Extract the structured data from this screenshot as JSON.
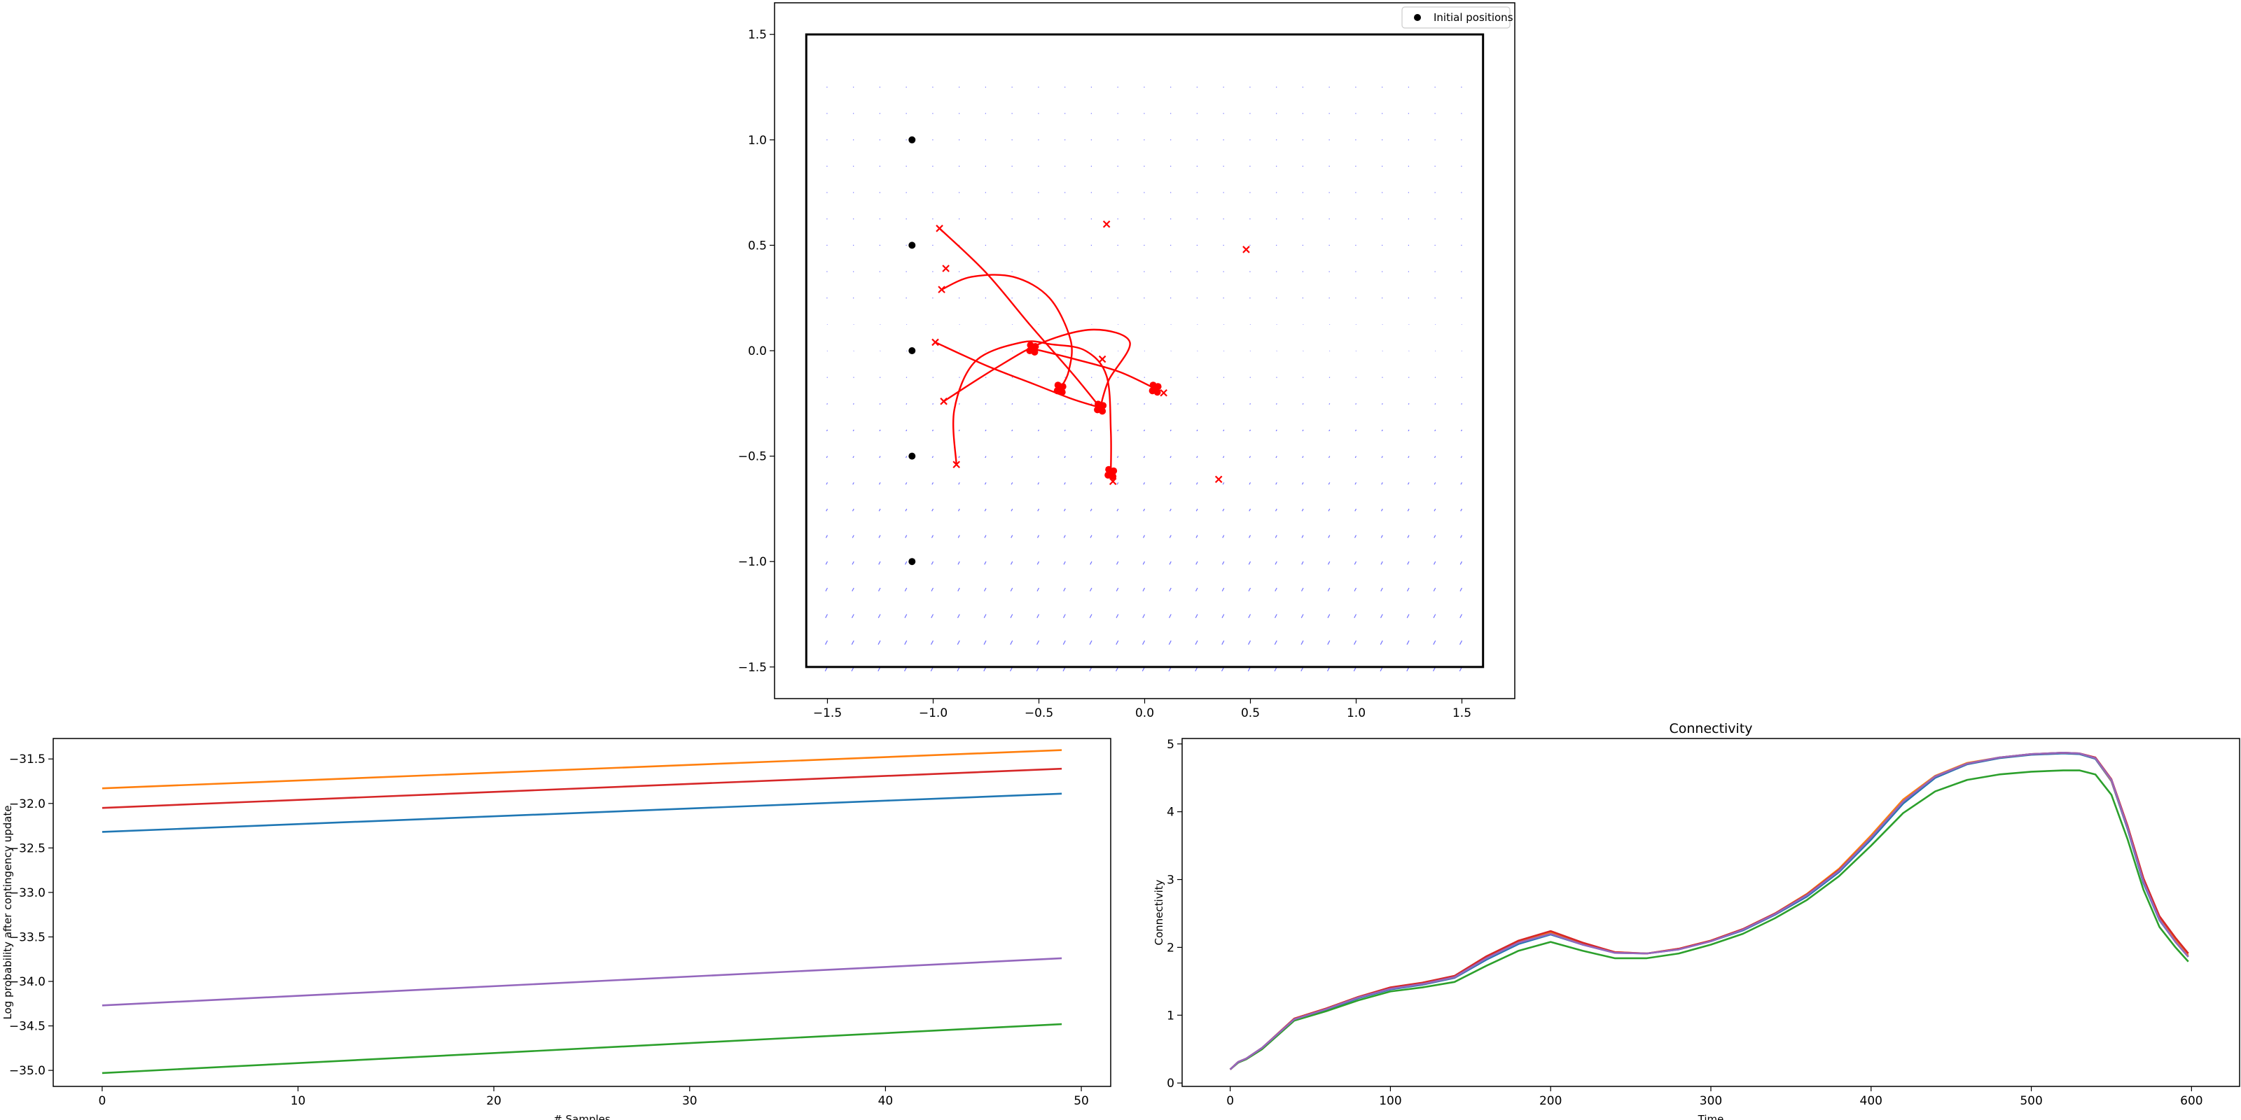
{
  "chart_data": [
    {
      "type": "scatter",
      "xlim": [
        -1.75,
        1.75
      ],
      "ylim": [
        -1.65,
        1.65
      ],
      "xticks": [
        "−1.5",
        "−1.0",
        "−0.5",
        "0.0",
        "0.5",
        "1.0",
        "1.5"
      ],
      "xtick_values": [
        -1.5,
        -1.0,
        -0.5,
        0.0,
        0.5,
        1.0,
        1.5
      ],
      "yticks": [
        "−1.5",
        "−1.0",
        "−0.5",
        "0.0",
        "0.5",
        "1.0",
        "1.5"
      ],
      "ytick_values": [
        -1.5,
        -1.0,
        -0.5,
        0.0,
        0.5,
        1.0,
        1.5
      ],
      "legend": {
        "label": "Initial positions",
        "placement": "top-right"
      },
      "boundary": {
        "x": [
          -1.6,
          1.6
        ],
        "y": [
          -1.5,
          1.5
        ]
      },
      "initial_positions": [
        [
          -1.1,
          1.0
        ],
        [
          -1.1,
          0.5
        ],
        [
          -1.1,
          0.0
        ],
        [
          -1.1,
          -0.5
        ],
        [
          -1.1,
          -1.0
        ]
      ],
      "x_markers": [
        [
          -0.97,
          0.58
        ],
        [
          -0.94,
          0.39
        ],
        [
          -0.96,
          0.29
        ],
        [
          -0.99,
          0.04
        ],
        [
          -0.95,
          -0.24
        ],
        [
          -0.89,
          -0.54
        ],
        [
          -0.18,
          0.6
        ],
        [
          0.48,
          0.48
        ],
        [
          -0.2,
          -0.04
        ],
        [
          0.09,
          -0.2
        ],
        [
          -0.15,
          -0.62
        ],
        [
          0.35,
          -0.61
        ]
      ],
      "endpoints": [
        [
          -0.53,
          0.01
        ],
        [
          -0.4,
          -0.18
        ],
        [
          -0.21,
          -0.27
        ],
        [
          0.05,
          -0.18
        ],
        [
          -0.16,
          -0.58
        ]
      ],
      "trajectories": [
        [
          [
            -0.97,
            0.58
          ],
          [
            -0.75,
            0.37
          ],
          [
            -0.54,
            0.12
          ],
          [
            -0.34,
            -0.11
          ],
          [
            -0.21,
            -0.27
          ]
        ],
        [
          [
            -0.96,
            0.29
          ],
          [
            -0.82,
            0.35
          ],
          [
            -0.62,
            0.35
          ],
          [
            -0.45,
            0.25
          ],
          [
            -0.35,
            0.05
          ],
          [
            -0.36,
            -0.1
          ],
          [
            -0.4,
            -0.18
          ]
        ],
        [
          [
            -0.99,
            0.04
          ],
          [
            -0.75,
            -0.07
          ],
          [
            -0.52,
            -0.16
          ],
          [
            -0.34,
            -0.23
          ],
          [
            -0.21,
            -0.27
          ]
        ],
        [
          [
            -0.95,
            -0.24
          ],
          [
            -0.7,
            -0.08
          ],
          [
            -0.48,
            0.04
          ],
          [
            -0.24,
            0.1
          ],
          [
            -0.07,
            0.04
          ],
          [
            -0.17,
            -0.14
          ],
          [
            -0.21,
            -0.27
          ]
        ],
        [
          [
            -0.89,
            -0.54
          ],
          [
            -0.9,
            -0.28
          ],
          [
            -0.8,
            -0.05
          ],
          [
            -0.58,
            0.04
          ],
          [
            -0.44,
            0.03
          ],
          [
            -0.28,
            0.0
          ],
          [
            -0.18,
            -0.12
          ],
          [
            -0.16,
            -0.38
          ],
          [
            -0.16,
            -0.58
          ]
        ],
        [
          [
            -0.53,
            0.01
          ],
          [
            -0.33,
            -0.04
          ],
          [
            -0.12,
            -0.1
          ],
          [
            0.05,
            -0.18
          ]
        ]
      ],
      "vector_field": {
        "color": "#0000ff"
      }
    },
    {
      "type": "line",
      "xlabel": "# Samples",
      "ylabel": "Log probability after contingency update",
      "xlim": [
        -2.5,
        51.5
      ],
      "ylim": [
        -35.18,
        -31.27
      ],
      "xticks": [
        0,
        10,
        20,
        30,
        40,
        50
      ],
      "yticks": [
        "−31.5",
        "−32.0",
        "−32.5",
        "−33.0",
        "−33.5",
        "−34.0",
        "−34.5",
        "−35.0"
      ],
      "ytick_values": [
        -31.5,
        -32.0,
        -32.5,
        -33.0,
        -33.5,
        -34.0,
        -34.5,
        -35.0
      ],
      "series": [
        {
          "color": "#1f77b4",
          "x": [
            0,
            49
          ],
          "values": [
            -32.32,
            -31.89
          ]
        },
        {
          "color": "#ff7f0e",
          "x": [
            0,
            49
          ],
          "values": [
            -31.83,
            -31.4
          ]
        },
        {
          "color": "#2ca02c",
          "x": [
            0,
            49
          ],
          "values": [
            -35.03,
            -34.48
          ]
        },
        {
          "color": "#d62728",
          "x": [
            0,
            49
          ],
          "values": [
            -32.05,
            -31.61
          ]
        },
        {
          "color": "#9467bd",
          "x": [
            0,
            49
          ],
          "values": [
            -34.27,
            -33.74
          ]
        }
      ]
    },
    {
      "type": "line",
      "title": "Connectivity",
      "xlabel": "Time",
      "ylabel": "Connectivity",
      "xlim": [
        -30,
        630
      ],
      "ylim": [
        -0.05,
        5.08
      ],
      "xticks": [
        0,
        100,
        200,
        300,
        400,
        500,
        600
      ],
      "yticks": [
        0,
        1,
        2,
        3,
        4,
        5
      ],
      "x": [
        0,
        5,
        10,
        20,
        40,
        60,
        80,
        100,
        120,
        140,
        160,
        180,
        200,
        220,
        240,
        260,
        280,
        300,
        320,
        340,
        360,
        380,
        400,
        420,
        440,
        460,
        480,
        500,
        520,
        530,
        540,
        550,
        560,
        570,
        580,
        590,
        598
      ],
      "series": [
        {
          "color": "#1f77b4",
          "values": [
            0.2,
            0.31,
            0.36,
            0.52,
            0.93,
            1.08,
            1.25,
            1.38,
            1.45,
            1.55,
            1.82,
            2.05,
            2.19,
            2.04,
            1.92,
            1.91,
            1.97,
            2.09,
            2.25,
            2.48,
            2.75,
            3.11,
            3.59,
            4.12,
            4.5,
            4.7,
            4.79,
            4.84,
            4.86,
            4.85,
            4.78,
            4.45,
            3.75,
            2.95,
            2.4,
            2.08,
            1.86
          ]
        },
        {
          "color": "#ff7f0e",
          "values": [
            0.2,
            0.31,
            0.36,
            0.52,
            0.95,
            1.1,
            1.27,
            1.4,
            1.46,
            1.56,
            1.85,
            2.08,
            2.22,
            2.06,
            1.93,
            1.91,
            1.98,
            2.1,
            2.27,
            2.5,
            2.79,
            3.16,
            3.65,
            4.18,
            4.53,
            4.72,
            4.8,
            4.85,
            4.87,
            4.86,
            4.79,
            4.46,
            3.77,
            2.98,
            2.42,
            2.1,
            1.88
          ]
        },
        {
          "color": "#2ca02c",
          "values": [
            0.2,
            0.3,
            0.35,
            0.5,
            0.92,
            1.06,
            1.22,
            1.35,
            1.41,
            1.49,
            1.73,
            1.95,
            2.08,
            1.95,
            1.84,
            1.84,
            1.91,
            2.04,
            2.2,
            2.43,
            2.7,
            3.05,
            3.5,
            3.98,
            4.3,
            4.47,
            4.55,
            4.59,
            4.61,
            4.61,
            4.55,
            4.25,
            3.6,
            2.85,
            2.3,
            2.0,
            1.79
          ]
        },
        {
          "color": "#d62728",
          "values": [
            0.2,
            0.31,
            0.36,
            0.52,
            0.95,
            1.1,
            1.27,
            1.41,
            1.48,
            1.58,
            1.87,
            2.1,
            2.24,
            2.07,
            1.93,
            1.91,
            1.98,
            2.1,
            2.27,
            2.5,
            2.78,
            3.14,
            3.62,
            4.15,
            4.52,
            4.71,
            4.8,
            4.85,
            4.87,
            4.86,
            4.8,
            4.48,
            3.8,
            3.02,
            2.46,
            2.14,
            1.91
          ]
        },
        {
          "color": "#9467bd",
          "values": [
            0.2,
            0.31,
            0.36,
            0.52,
            0.94,
            1.09,
            1.26,
            1.39,
            1.46,
            1.56,
            1.84,
            2.07,
            2.2,
            2.04,
            1.92,
            1.91,
            1.97,
            2.09,
            2.26,
            2.49,
            2.77,
            3.13,
            3.62,
            4.15,
            4.52,
            4.71,
            4.8,
            4.85,
            4.87,
            4.86,
            4.79,
            4.47,
            3.77,
            2.97,
            2.41,
            2.08,
            1.86
          ]
        }
      ]
    }
  ]
}
